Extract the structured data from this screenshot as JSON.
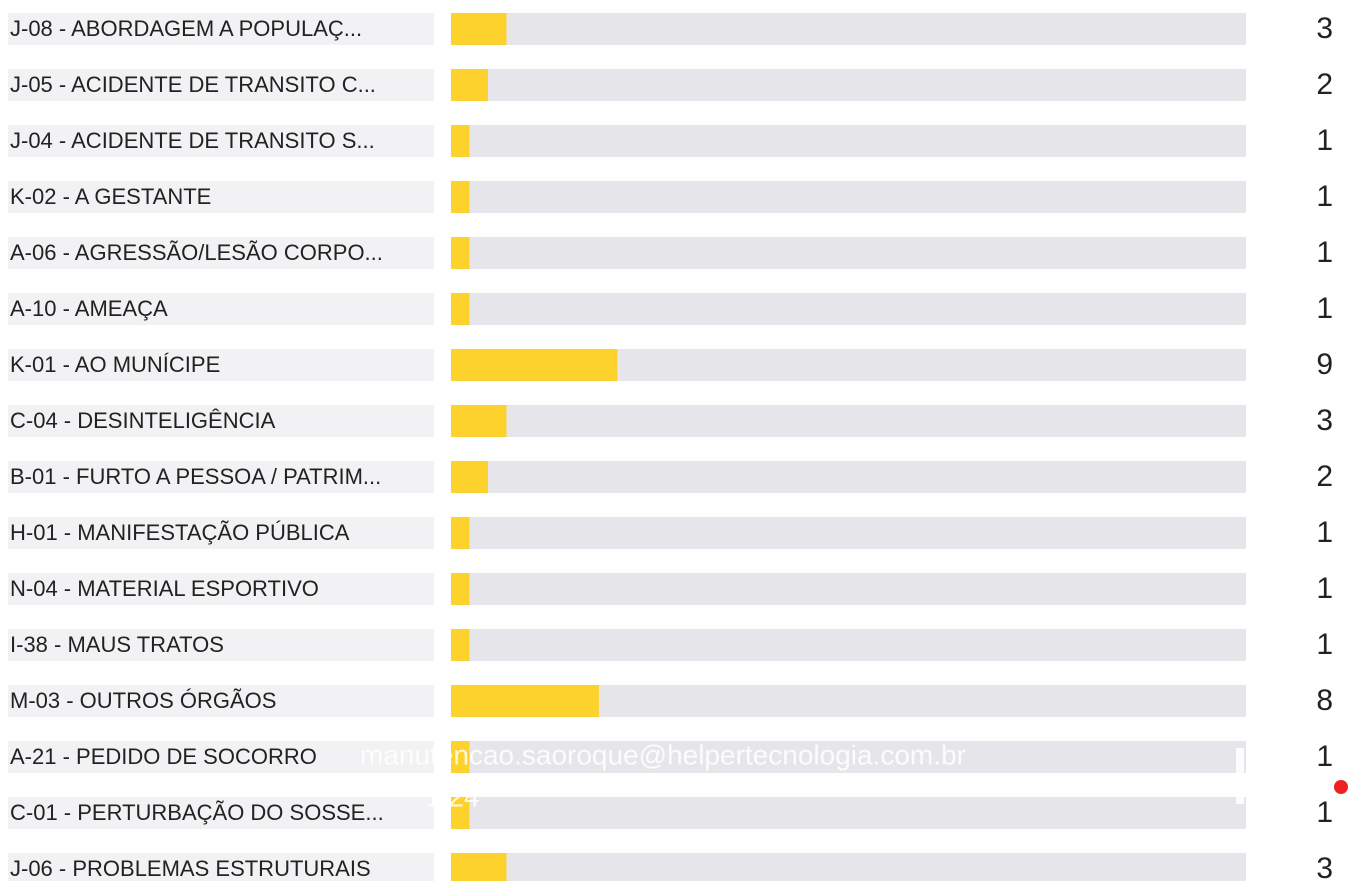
{
  "chart_data": {
    "type": "hbar",
    "categories": [
      "J-08 - ABORDAGEM A POPULAÇ...",
      "J-05 - ACIDENTE DE TRANSITO C...",
      "J-04 - ACIDENTE DE TRANSITO S...",
      "K-02 - A GESTANTE",
      "A-06 - AGRESSÃO/LESÃO CORPO...",
      "A-10 - AMEAÇA",
      "K-01 - AO MUNÍCIPE",
      "C-04 - DESINTELIGÊNCIA",
      "B-01 - FURTO A PESSOA / PATRIM...",
      "H-01 - MANIFESTAÇÃO PÚBLICA",
      "N-04 - MATERIAL ESPORTIVO",
      "I-38 - MAUS TRATOS",
      "M-03 - OUTROS ÓRGÃOS",
      "A-21 - PEDIDO DE SOCORRO",
      "C-01 - PERTURBAÇÃO DO SOSSE...",
      "J-06 - PROBLEMAS ESTRUTURAIS"
    ],
    "values": [
      3,
      2,
      1,
      1,
      1,
      1,
      9,
      3,
      2,
      1,
      1,
      1,
      8,
      1,
      1,
      3
    ],
    "color": "#fdd22c",
    "track_color": "#e6e6ea",
    "xlim": [
      0,
      43
    ],
    "annotations": [
      "manutencao.saoroque@helpertecnologia.com.br",
      "1.24"
    ]
  }
}
